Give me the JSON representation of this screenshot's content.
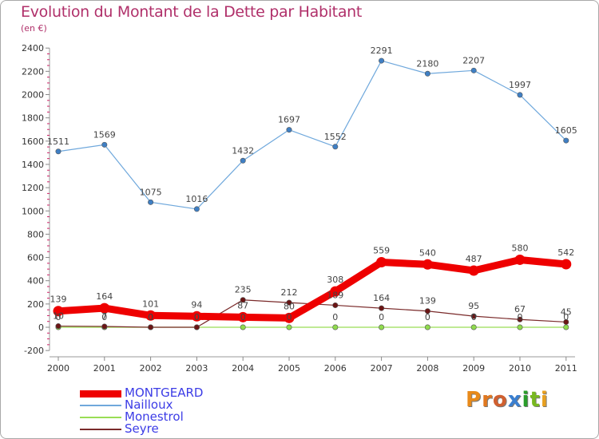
{
  "header": {
    "title": "Evolution du Montant de la Dette par Habitant",
    "subtitle": "(en €)"
  },
  "chart_data": {
    "type": "line",
    "title": "Evolution du Montant de la Dette par Habitant",
    "subtitle": "(en €)",
    "xlabel": "",
    "ylabel": "",
    "x": [
      "2000",
      "2001",
      "2002",
      "2003",
      "2004",
      "2005",
      "2006",
      "2007",
      "2008",
      "2009",
      "2010",
      "2011"
    ],
    "y_ticks": [
      "-200",
      "0",
      "200",
      "400",
      "600",
      "800",
      "1000",
      "1200",
      "1400",
      "1600",
      "1800",
      "2000",
      "2200",
      "2400"
    ],
    "ylim": [
      -200,
      2400
    ],
    "grid": false,
    "legend_position": "bottom-left",
    "series": [
      {
        "name": "MONTGEARD",
        "values": [
          139,
          164,
          101,
          94,
          87,
          80,
          308,
          559,
          540,
          487,
          580,
          542
        ],
        "labels": [
          "139",
          "164",
          "101",
          "94",
          "87",
          "80",
          "308",
          "559",
          "540",
          "487",
          "580",
          "542"
        ],
        "color": "#ee0000"
      },
      {
        "name": "Nailloux",
        "values": [
          1511,
          1569,
          1075,
          1016,
          1432,
          1697,
          1552,
          2291,
          2180,
          2207,
          1997,
          1605
        ],
        "labels": [
          "1511",
          "1569",
          "1075",
          "1016",
          "1432",
          "1697",
          "1552",
          "2291",
          "2180",
          "2207",
          "1997",
          "1605"
        ],
        "color": "#6fa8dc"
      },
      {
        "name": "Monestrol",
        "values": [
          0,
          0,
          0,
          0,
          0,
          0,
          0,
          0,
          0,
          0,
          0,
          0
        ],
        "labels": [
          "0",
          "0",
          "0",
          "0",
          "0",
          "0",
          "0",
          "0",
          "0",
          "0",
          "0",
          "0"
        ],
        "color": "#99dd55"
      },
      {
        "name": "Seyre",
        "values": [
          10,
          7,
          0,
          0,
          235,
          212,
          189,
          164,
          139,
          95,
          67,
          45
        ],
        "labels": [
          "10",
          "7",
          "0",
          "0",
          "235",
          "212",
          "189",
          "164",
          "139",
          "95",
          "67",
          "45"
        ],
        "color": "#7a2a2a"
      }
    ]
  },
  "legend": [
    {
      "label": "MONTGEARD"
    },
    {
      "label": "Nailloux"
    },
    {
      "label": "Monestrol"
    },
    {
      "label": "Seyre"
    }
  ],
  "logo": {
    "letters": [
      "P",
      "r",
      "o",
      "x",
      "i",
      "t",
      "i"
    ],
    "colors": [
      "#e88a1a",
      "#e07820",
      "#d06030",
      "#3a7fd0",
      "#2a9d2a",
      "#78b820",
      "#e8a020"
    ]
  }
}
